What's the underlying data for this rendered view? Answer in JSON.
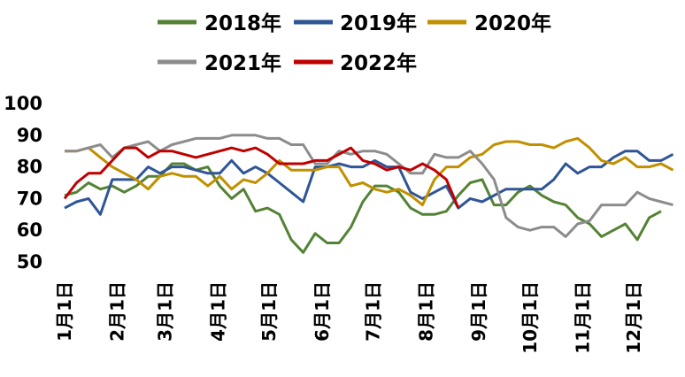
{
  "chart_data": {
    "type": "line",
    "ylim": [
      50,
      100
    ],
    "yticks": [
      50,
      60,
      70,
      80,
      90,
      100
    ],
    "ytick_labels": [
      "50",
      "60",
      "70",
      "80",
      "90",
      "100"
    ],
    "x_labels": [
      "1月1日",
      "2月1日",
      "3月1日",
      "4月1日",
      "5月1日",
      "6月1日",
      "7月1日",
      "8月1日",
      "9月1日",
      "10月1日",
      "11月1日",
      "12月1日"
    ],
    "x_label_weeks": [
      0,
      4.43,
      8.43,
      12.86,
      17.14,
      21.57,
      25.86,
      30.29,
      34.71,
      39,
      43.43,
      47.71
    ],
    "x_max_week": 52,
    "grid": false,
    "legend_position": "top",
    "series": [
      {
        "name": "2018年",
        "color": "#548235",
        "points": [
          [
            0,
            71
          ],
          [
            1,
            72
          ],
          [
            2,
            75
          ],
          [
            3,
            73
          ],
          [
            4,
            74
          ],
          [
            5,
            72
          ],
          [
            6,
            74
          ],
          [
            7,
            77
          ],
          [
            8,
            77
          ],
          [
            9,
            81
          ],
          [
            10,
            81
          ],
          [
            11,
            79
          ],
          [
            12,
            80
          ],
          [
            13,
            74
          ],
          [
            14,
            70
          ],
          [
            15,
            73
          ],
          [
            16,
            66
          ],
          [
            17,
            67
          ],
          [
            18,
            65
          ],
          [
            19,
            57
          ],
          [
            20,
            53
          ],
          [
            21,
            59
          ],
          [
            22,
            56
          ],
          [
            23,
            56
          ],
          [
            24,
            61
          ],
          [
            25,
            69
          ],
          [
            26,
            74
          ],
          [
            27,
            74
          ],
          [
            28,
            72
          ],
          [
            29,
            67
          ],
          [
            30,
            65
          ],
          [
            31,
            65
          ],
          [
            32,
            66
          ],
          [
            33,
            71
          ],
          [
            34,
            75
          ],
          [
            35,
            76
          ],
          [
            36,
            68
          ],
          [
            37,
            68
          ],
          [
            38,
            72
          ],
          [
            39,
            74
          ],
          [
            40,
            71
          ],
          [
            41,
            69
          ],
          [
            42,
            68
          ],
          [
            43,
            64
          ],
          [
            44,
            62
          ],
          [
            45,
            58
          ],
          [
            46,
            60
          ],
          [
            47,
            62
          ],
          [
            48,
            57
          ],
          [
            49,
            64
          ],
          [
            50,
            66
          ]
        ]
      },
      {
        "name": "2019年",
        "color": "#2f5597",
        "points": [
          [
            0,
            67
          ],
          [
            1,
            69
          ],
          [
            2,
            70
          ],
          [
            3,
            65
          ],
          [
            4,
            76
          ],
          [
            5,
            76
          ],
          [
            6,
            76
          ],
          [
            7,
            80
          ],
          [
            8,
            78
          ],
          [
            9,
            80
          ],
          [
            10,
            80
          ],
          [
            11,
            79
          ],
          [
            12,
            78
          ],
          [
            13,
            78
          ],
          [
            14,
            82
          ],
          [
            15,
            78
          ],
          [
            16,
            80
          ],
          [
            17,
            78
          ],
          [
            18,
            75
          ],
          [
            19,
            72
          ],
          [
            20,
            69
          ],
          [
            21,
            80
          ],
          [
            22,
            80
          ],
          [
            23,
            81
          ],
          [
            24,
            80
          ],
          [
            25,
            80
          ],
          [
            26,
            82
          ],
          [
            27,
            80
          ],
          [
            28,
            80
          ],
          [
            29,
            72
          ],
          [
            30,
            70
          ],
          [
            31,
            72
          ],
          [
            32,
            74
          ],
          [
            33,
            67
          ],
          [
            34,
            70
          ],
          [
            35,
            69
          ],
          [
            36,
            71
          ],
          [
            37,
            73
          ],
          [
            38,
            73
          ],
          [
            39,
            73
          ],
          [
            40,
            73
          ],
          [
            41,
            76
          ],
          [
            42,
            81
          ],
          [
            43,
            78
          ],
          [
            44,
            80
          ],
          [
            45,
            80
          ],
          [
            46,
            83
          ],
          [
            47,
            85
          ],
          [
            48,
            85
          ],
          [
            49,
            82
          ],
          [
            50,
            82
          ],
          [
            51,
            84
          ]
        ]
      },
      {
        "name": "2020年",
        "color": "#c09000",
        "points": [
          [
            0,
            85
          ],
          [
            1,
            85
          ],
          [
            2,
            86
          ],
          [
            3,
            83
          ],
          [
            4,
            80
          ],
          [
            5,
            78
          ],
          [
            6,
            76
          ],
          [
            7,
            73
          ],
          [
            8,
            77
          ],
          [
            9,
            78
          ],
          [
            10,
            77
          ],
          [
            11,
            77
          ],
          [
            12,
            74
          ],
          [
            13,
            77
          ],
          [
            14,
            73
          ],
          [
            15,
            76
          ],
          [
            16,
            75
          ],
          [
            17,
            78
          ],
          [
            18,
            82
          ],
          [
            19,
            79
          ],
          [
            20,
            79
          ],
          [
            21,
            79
          ],
          [
            22,
            80
          ],
          [
            23,
            80
          ],
          [
            24,
            74
          ],
          [
            25,
            75
          ],
          [
            26,
            73
          ],
          [
            27,
            72
          ],
          [
            28,
            73
          ],
          [
            29,
            71
          ],
          [
            30,
            68
          ],
          [
            31,
            76
          ],
          [
            32,
            80
          ],
          [
            33,
            80
          ],
          [
            34,
            83
          ],
          [
            35,
            84
          ],
          [
            36,
            87
          ],
          [
            37,
            88
          ],
          [
            38,
            88
          ],
          [
            39,
            87
          ],
          [
            40,
            87
          ],
          [
            41,
            86
          ],
          [
            42,
            88
          ],
          [
            43,
            89
          ],
          [
            44,
            86
          ],
          [
            45,
            82
          ],
          [
            46,
            81
          ],
          [
            47,
            83
          ],
          [
            48,
            80
          ],
          [
            49,
            80
          ],
          [
            50,
            81
          ],
          [
            51,
            79
          ]
        ]
      },
      {
        "name": "2021年",
        "color": "#8c8c8c",
        "points": [
          [
            0,
            85
          ],
          [
            1,
            85
          ],
          [
            2,
            86
          ],
          [
            3,
            87
          ],
          [
            4,
            83
          ],
          [
            5,
            86
          ],
          [
            6,
            87
          ],
          [
            7,
            88
          ],
          [
            8,
            85
          ],
          [
            9,
            87
          ],
          [
            10,
            88
          ],
          [
            11,
            89
          ],
          [
            12,
            89
          ],
          [
            13,
            89
          ],
          [
            14,
            90
          ],
          [
            15,
            90
          ],
          [
            16,
            90
          ],
          [
            17,
            89
          ],
          [
            18,
            89
          ],
          [
            19,
            87
          ],
          [
            20,
            87
          ],
          [
            21,
            81
          ],
          [
            22,
            81
          ],
          [
            23,
            85
          ],
          [
            24,
            84
          ],
          [
            25,
            85
          ],
          [
            26,
            85
          ],
          [
            27,
            84
          ],
          [
            28,
            81
          ],
          [
            29,
            78
          ],
          [
            30,
            78
          ],
          [
            31,
            84
          ],
          [
            32,
            83
          ],
          [
            33,
            83
          ],
          [
            34,
            85
          ],
          [
            35,
            81
          ],
          [
            36,
            76
          ],
          [
            37,
            64
          ],
          [
            38,
            61
          ],
          [
            39,
            60
          ],
          [
            40,
            61
          ],
          [
            41,
            61
          ],
          [
            42,
            58
          ],
          [
            43,
            62
          ],
          [
            44,
            63
          ],
          [
            45,
            68
          ],
          [
            46,
            68
          ],
          [
            47,
            68
          ],
          [
            48,
            72
          ],
          [
            49,
            70
          ],
          [
            50,
            69
          ],
          [
            51,
            68
          ]
        ]
      },
      {
        "name": "2022年",
        "color": "#c00000",
        "points": [
          [
            0,
            70
          ],
          [
            1,
            75
          ],
          [
            2,
            78
          ],
          [
            3,
            78
          ],
          [
            4,
            82
          ],
          [
            5,
            86
          ],
          [
            6,
            86
          ],
          [
            7,
            83
          ],
          [
            8,
            85
          ],
          [
            9,
            85
          ],
          [
            10,
            84
          ],
          [
            11,
            83
          ],
          [
            12,
            84
          ],
          [
            13,
            85
          ],
          [
            14,
            86
          ],
          [
            15,
            85
          ],
          [
            16,
            86
          ],
          [
            17,
            84
          ],
          [
            18,
            81
          ],
          [
            19,
            81
          ],
          [
            20,
            81
          ],
          [
            21,
            82
          ],
          [
            22,
            82
          ],
          [
            23,
            84
          ],
          [
            24,
            86
          ],
          [
            25,
            82
          ],
          [
            26,
            81
          ],
          [
            27,
            79
          ],
          [
            28,
            80
          ],
          [
            29,
            79
          ],
          [
            30,
            81
          ],
          [
            31,
            79
          ],
          [
            32,
            76
          ],
          [
            33,
            67
          ]
        ]
      }
    ]
  }
}
